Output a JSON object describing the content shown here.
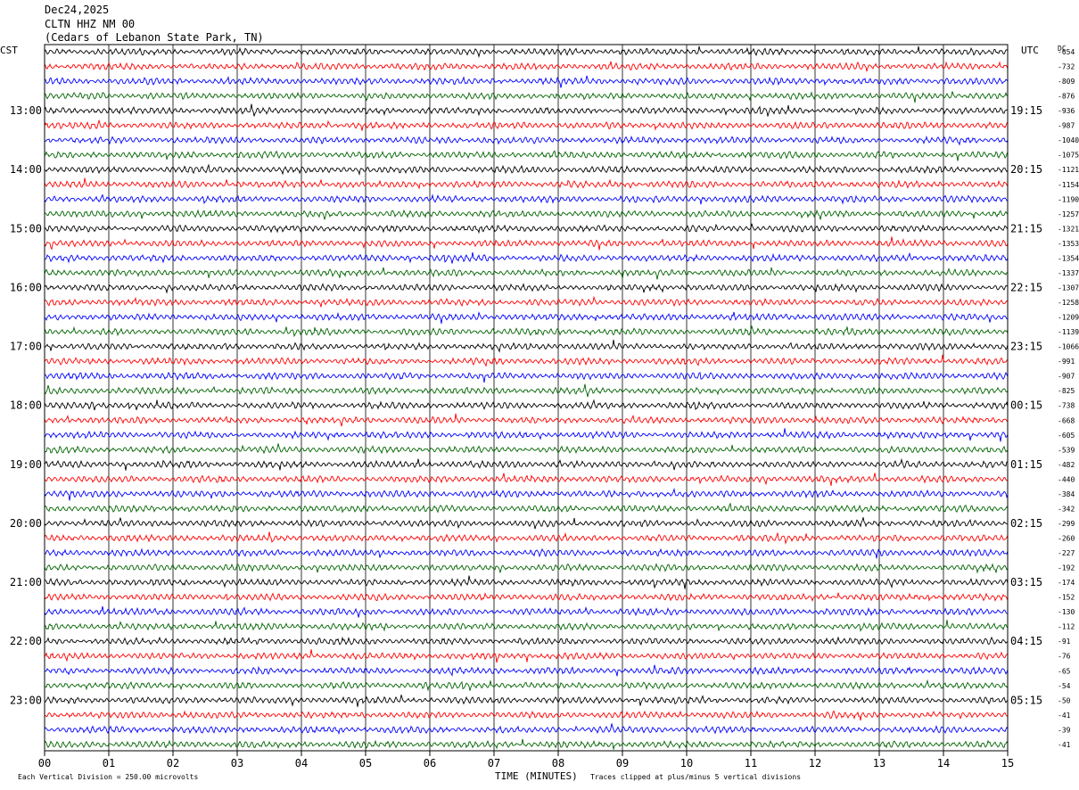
{
  "header": {
    "date": "Dec24,2025",
    "station": "CLTN HHZ NM 00",
    "location": "(Cedars of Lebanon State Park, TN)"
  },
  "left_zone_label": "CST",
  "right_zone_label": "UTC",
  "dc_label": "DC",
  "footer": {
    "scale_text": "Each Vertical Division =  250.00 microvolts",
    "xaxis_title": "TIME (MINUTES)",
    "clip_text": "Traces clipped at plus/minus 5 vertical divisions"
  },
  "trace_colors": [
    "#000000",
    "#ff0000",
    "#0000ff",
    "#006400"
  ],
  "chart_data": {
    "type": "line",
    "xlabel": "TIME (MINUTES)",
    "xlim": [
      0,
      15
    ],
    "x_ticks": [
      "00",
      "01",
      "02",
      "03",
      "04",
      "05",
      "06",
      "07",
      "08",
      "09",
      "10",
      "11",
      "12",
      "13",
      "14",
      "15"
    ],
    "left_hour_labels": [
      {
        "row": 4,
        "text": "13:00"
      },
      {
        "row": 8,
        "text": "14:00"
      },
      {
        "row": 12,
        "text": "15:00"
      },
      {
        "row": 16,
        "text": "16:00"
      },
      {
        "row": 20,
        "text": "17:00"
      },
      {
        "row": 24,
        "text": "18:00"
      },
      {
        "row": 28,
        "text": "19:00"
      },
      {
        "row": 32,
        "text": "20:00"
      },
      {
        "row": 36,
        "text": "21:00"
      },
      {
        "row": 40,
        "text": "22:00"
      },
      {
        "row": 44,
        "text": "23:00"
      }
    ],
    "right_hour_labels": [
      {
        "row": 4,
        "text": "19:15"
      },
      {
        "row": 8,
        "text": "20:15"
      },
      {
        "row": 12,
        "text": "21:15"
      },
      {
        "row": 16,
        "text": "22:15"
      },
      {
        "row": 20,
        "text": "23:15"
      },
      {
        "row": 24,
        "text": "00:15"
      },
      {
        "row": 28,
        "text": "01:15"
      },
      {
        "row": 32,
        "text": "02:15"
      },
      {
        "row": 36,
        "text": "03:15"
      },
      {
        "row": 40,
        "text": "04:15"
      },
      {
        "row": 44,
        "text": "05:15"
      }
    ],
    "dc_offsets": [
      -654,
      -732,
      -809,
      -876,
      -936,
      -987,
      -1040,
      -1075,
      -1121,
      -1154,
      -1190,
      -1257,
      -1321,
      -1353,
      -1354,
      -1337,
      -1307,
      -1258,
      -1209,
      -1139,
      -1066,
      -991,
      -907,
      -825,
      -738,
      -668,
      -605,
      -539,
      -482,
      -440,
      -384,
      -342,
      -299,
      -260,
      -227,
      -192,
      -174,
      -152,
      -130,
      -112,
      -91,
      -76,
      -65,
      -54,
      -50,
      -41,
      -39,
      -41
    ]
  }
}
